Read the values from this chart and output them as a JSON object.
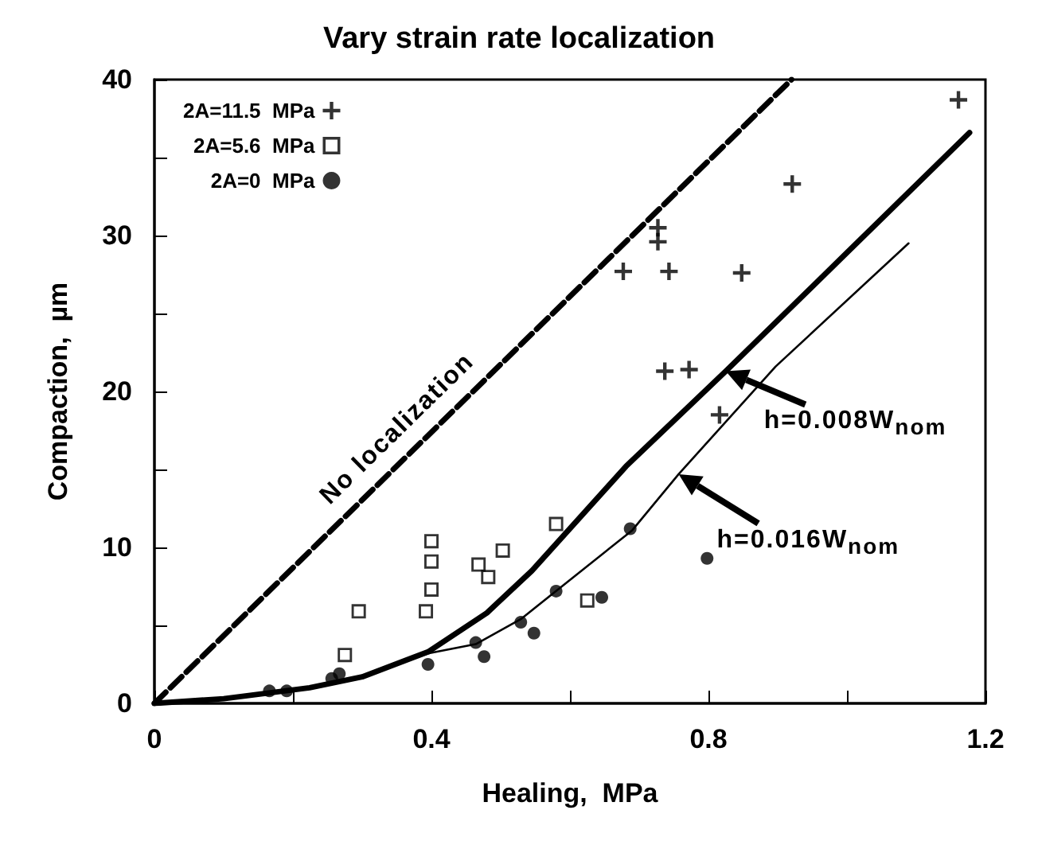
{
  "chart_data": {
    "type": "scatter",
    "title": "Vary strain rate localization",
    "xlabel": "Healing,  MPa",
    "ylabel": "Compaction,  µm",
    "xlim": [
      0,
      1.2
    ],
    "ylim": [
      0,
      40
    ],
    "xticks": [
      0,
      {
        "value": 0.2,
        "label": null
      },
      0.4,
      {
        "value": 0.6,
        "label": null
      },
      0.8,
      {
        "value": 1.0,
        "label": null
      },
      1.2
    ],
    "yticks": [
      0,
      {
        "value": 5,
        "label": null
      },
      10,
      {
        "value": 15,
        "label": null
      },
      20,
      {
        "value": 25,
        "label": null
      },
      30,
      {
        "value": 35,
        "label": null
      },
      40
    ],
    "grid": false,
    "legend": "top left",
    "series": [
      {
        "name": "2A=11.5  MPa",
        "color": "#000000",
        "marker": "cross",
        "x": [
          1.161,
          0.921,
          0.727,
          0.727,
          0.677,
          0.743,
          0.848,
          0.737,
          0.772,
          0.816
        ],
        "values": [
          38.7,
          33.3,
          30.5,
          29.6,
          27.7,
          27.7,
          27.6,
          21.3,
          21.4,
          18.5
        ]
      },
      {
        "name": "2A=5.6  MPa",
        "color": "#000000",
        "marker": "square",
        "x": [
          0.275,
          0.295,
          0.392,
          0.4,
          0.4,
          0.4,
          0.468,
          0.482,
          0.503,
          0.58,
          0.625
        ],
        "values": [
          3.1,
          5.9,
          5.9,
          7.3,
          9.1,
          10.4,
          8.9,
          8.1,
          9.8,
          11.5,
          6.6
        ]
      },
      {
        "name": "2A=0  MPa",
        "color": "#000000",
        "marker": "circle",
        "x": [
          0.166,
          0.191,
          0.256,
          0.267,
          0.395,
          0.464,
          0.476,
          0.529,
          0.548,
          0.58,
          0.646,
          0.687,
          0.798
        ],
        "values": [
          0.8,
          0.8,
          1.6,
          1.9,
          2.5,
          3.9,
          3.0,
          5.2,
          4.5,
          7.2,
          6.8,
          11.2,
          9.3
        ]
      },
      {
        "type": "line",
        "color": "#000000",
        "marker": "none",
        "line_style": "dashed",
        "x": [
          0,
          0.92
        ],
        "values": [
          0,
          40
        ]
      },
      {
        "type": "line",
        "color": "#000000",
        "marker": "none",
        "line_style": "solid",
        "x": [
          0,
          0.1,
          0.224,
          0.3,
          0.395,
          0.48,
          0.545,
          0.681,
          0.825,
          1.0,
          1.177
        ],
        "values": [
          0,
          0.3,
          1.0,
          1.7,
          3.3,
          5.8,
          8.5,
          15.2,
          21.3,
          28.9,
          36.6
        ]
      },
      {
        "type": "line",
        "color": "#000000",
        "marker": "none",
        "line_style": "solid",
        "x": [
          0,
          0.1,
          0.224,
          0.3,
          0.395,
          0.464,
          0.529,
          0.69,
          0.757,
          0.897,
          1.089
        ],
        "values": [
          0,
          0.3,
          1.0,
          1.7,
          3.2,
          3.8,
          5.4,
          11.1,
          14.7,
          21.6,
          29.5
        ]
      }
    ],
    "annotations": [
      {
        "text": "No localization",
        "x": 0.38,
        "y": 16.5
      },
      {
        "text": "h=0.008W$_{nom}$",
        "x": 0.825,
        "y": 21.3
      },
      {
        "text": "h=0.016W$_{nom}$",
        "x": 0.757,
        "y": 14.7
      }
    ]
  }
}
